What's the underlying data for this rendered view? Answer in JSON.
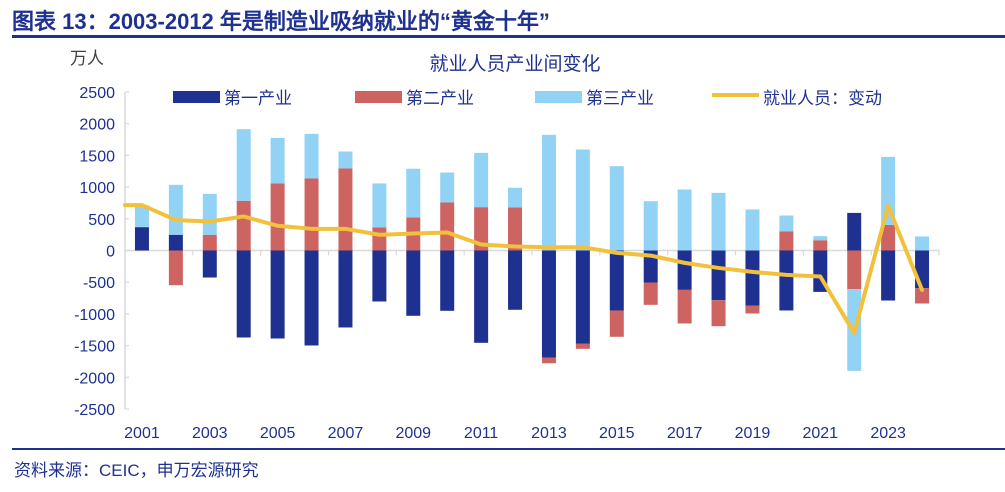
{
  "header": {
    "title": "图表 13：2003-2012 年是制造业吸纳就业的“黄金十年”"
  },
  "footer": {
    "source": "资料来源：CEIC，申万宏源研究"
  },
  "colors": {
    "primary": "#1F3190",
    "secondary": "#CD6461",
    "tertiary": "#92D3F5",
    "line": "#F2C13C",
    "axis": "#D9D9D9"
  },
  "chart_data": {
    "type": "bar",
    "subtype": "stacked-bar-with-line",
    "title": "就业人员产业间变化",
    "ylabel": "万人",
    "xlabel": "",
    "ylim": [
      -2500,
      2500
    ],
    "yticks": [
      2500,
      2000,
      1500,
      1000,
      500,
      0,
      -500,
      -1000,
      -1500,
      -2000,
      -2500
    ],
    "grid": false,
    "legend_position": "top",
    "categories": [
      "2001",
      "2002",
      "2003",
      "2004",
      "2005",
      "2006",
      "2007",
      "2008",
      "2009",
      "2010",
      "2011",
      "2012",
      "2013",
      "2014",
      "2015",
      "2016",
      "2017",
      "2018",
      "2019",
      "2020",
      "2021",
      "2022",
      "2023",
      "2024"
    ],
    "xtick_labels": [
      "2001",
      "2003",
      "2005",
      "2007",
      "2009",
      "2011",
      "2013",
      "2015",
      "2017",
      "2019",
      "2021",
      "2023"
    ],
    "series": [
      {
        "name": "第一产业",
        "kind": "bar",
        "color": "#1F3190",
        "values": [
          368,
          248,
          -426,
          -1372,
          -1388,
          -1498,
          -1214,
          -804,
          -1030,
          -951,
          -1456,
          -935,
          -1692,
          -1472,
          -946,
          -505,
          -621,
          -784,
          -868,
          -946,
          -653,
          593,
          -789,
          -595
        ]
      },
      {
        "name": "第二产业",
        "kind": "bar",
        "color": "#CD6461",
        "values": [
          5,
          -547,
          248,
          784,
          1058,
          1136,
          1294,
          363,
          520,
          757,
          684,
          678,
          -86,
          -79,
          -415,
          -352,
          -530,
          -410,
          -126,
          300,
          162,
          -610,
          404,
          -241
        ]
      },
      {
        "name": "第三产业",
        "kind": "bar",
        "color": "#92D3F5",
        "values": [
          337,
          788,
          645,
          1129,
          717,
          704,
          268,
          695,
          770,
          473,
          856,
          312,
          1825,
          1593,
          1330,
          778,
          962,
          909,
          647,
          252,
          64,
          -1289,
          1073,
          221
        ]
      },
      {
        "name": "就业人员：变动",
        "kind": "line",
        "color": "#F2C13C",
        "values": [
          716,
          480,
          458,
          537,
          390,
          342,
          342,
          248,
          268,
          284,
          95,
          63,
          52,
          52,
          -37,
          -80,
          -195,
          -275,
          -337,
          -385,
          -410,
          -1300,
          703,
          -621
        ]
      }
    ]
  }
}
